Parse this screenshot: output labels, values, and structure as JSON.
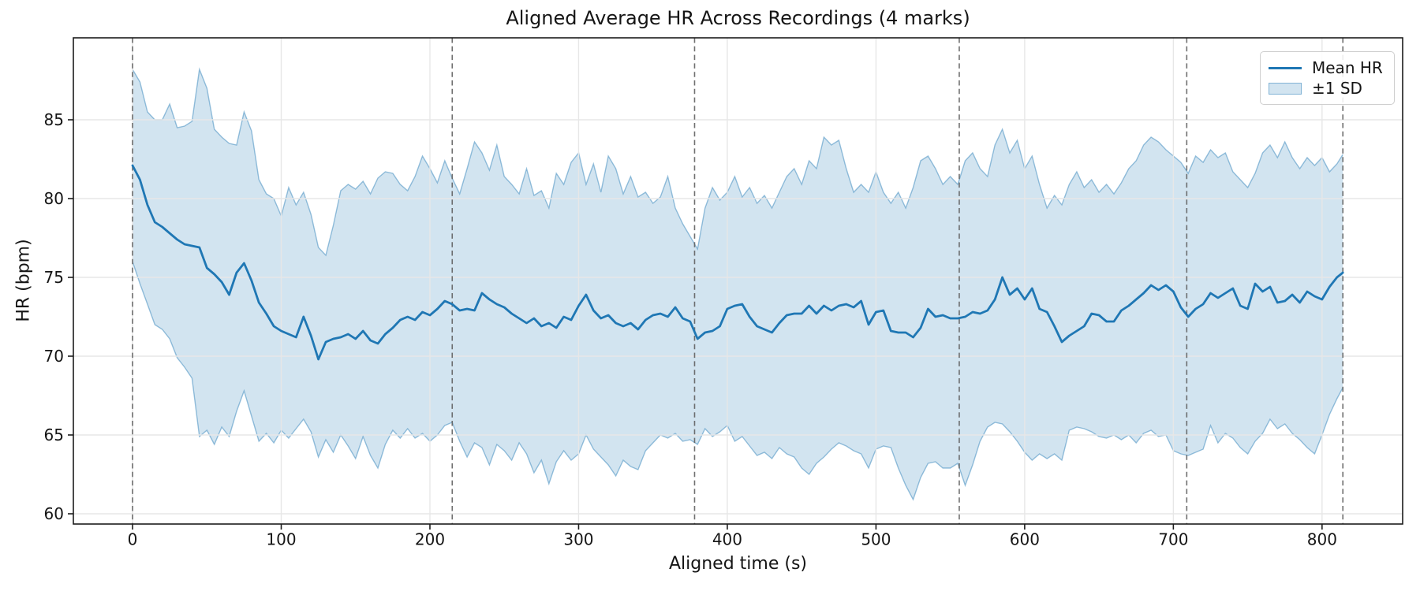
{
  "chart_data": {
    "type": "line",
    "title": "Aligned Average HR Across Recordings (4 marks)",
    "xlabel": "Aligned time (s)",
    "ylabel": "HR (bpm)",
    "xlim": [
      -39.8,
      854.2
    ],
    "ylim": [
      59.35,
      90.2
    ],
    "x_ticks": [
      0,
      100,
      200,
      300,
      400,
      500,
      600,
      700,
      800
    ],
    "y_ticks": [
      60,
      65,
      70,
      75,
      80,
      85
    ],
    "grid": true,
    "legend_position": "upper-right",
    "legend_entries": [
      {
        "label": "Mean HR",
        "swatch": "line",
        "color": "#1f77b4"
      },
      {
        "label": "±1 SD",
        "swatch": "patch",
        "color": "rgba(31,119,180,0.2)"
      }
    ],
    "mark_times_s": [
      0,
      215,
      378,
      556,
      709,
      814
    ],
    "series_x": [
      0,
      5,
      10,
      15,
      20,
      25,
      30,
      35,
      40,
      45,
      50,
      55,
      60,
      65,
      70,
      75,
      80,
      85,
      90,
      95,
      100,
      105,
      110,
      115,
      120,
      125,
      130,
      135,
      140,
      145,
      150,
      155,
      160,
      165,
      170,
      175,
      180,
      185,
      190,
      195,
      200,
      205,
      210,
      215,
      220,
      225,
      230,
      235,
      240,
      245,
      250,
      255,
      260,
      265,
      270,
      275,
      280,
      285,
      290,
      295,
      300,
      305,
      310,
      315,
      320,
      325,
      330,
      335,
      340,
      345,
      350,
      355,
      360,
      365,
      370,
      375,
      380,
      385,
      390,
      395,
      400,
      405,
      410,
      415,
      420,
      425,
      430,
      435,
      440,
      445,
      450,
      455,
      460,
      465,
      470,
      475,
      480,
      485,
      490,
      495,
      500,
      505,
      510,
      515,
      520,
      525,
      530,
      535,
      540,
      545,
      550,
      555,
      560,
      565,
      570,
      575,
      580,
      585,
      590,
      595,
      600,
      605,
      610,
      615,
      620,
      625,
      630,
      635,
      640,
      645,
      650,
      655,
      660,
      665,
      670,
      675,
      680,
      685,
      690,
      695,
      700,
      705,
      710,
      715,
      720,
      725,
      730,
      735,
      740,
      745,
      750,
      755,
      760,
      765,
      770,
      775,
      780,
      785,
      790,
      795,
      800,
      805,
      810,
      814
    ],
    "series": [
      {
        "name": "Mean HR",
        "type": "line",
        "color": "#1f77b4",
        "values": [
          82.1,
          81.2,
          79.6,
          78.5,
          78.2,
          77.8,
          77.4,
          77.1,
          77.0,
          76.9,
          75.6,
          75.2,
          74.7,
          73.9,
          75.3,
          75.9,
          74.8,
          73.4,
          72.7,
          71.9,
          71.6,
          71.4,
          71.2,
          72.5,
          71.3,
          69.8,
          70.9,
          71.1,
          71.2,
          71.4,
          71.1,
          71.6,
          71.0,
          70.8,
          71.4,
          71.8,
          72.3,
          72.5,
          72.3,
          72.8,
          72.6,
          73.0,
          73.5,
          73.3,
          72.9,
          73.0,
          72.9,
          74.0,
          73.6,
          73.3,
          73.1,
          72.7,
          72.4,
          72.1,
          72.4,
          71.9,
          72.1,
          71.8,
          72.5,
          72.3,
          73.2,
          73.9,
          72.9,
          72.4,
          72.6,
          72.1,
          71.9,
          72.1,
          71.7,
          72.3,
          72.6,
          72.7,
          72.5,
          73.1,
          72.4,
          72.2,
          71.1,
          71.5,
          71.6,
          71.9,
          73.0,
          73.2,
          73.3,
          72.5,
          71.9,
          71.7,
          71.5,
          72.1,
          72.6,
          72.7,
          72.7,
          73.2,
          72.7,
          73.2,
          72.9,
          73.2,
          73.3,
          73.1,
          73.5,
          72.0,
          72.8,
          72.9,
          71.6,
          71.5,
          71.5,
          71.2,
          71.8,
          73.0,
          72.5,
          72.6,
          72.4,
          72.4,
          72.5,
          72.8,
          72.7,
          72.9,
          73.6,
          75.0,
          73.9,
          74.3,
          73.6,
          74.3,
          73.0,
          72.8,
          71.9,
          70.9,
          71.3,
          71.6,
          71.9,
          72.7,
          72.6,
          72.2,
          72.2,
          72.9,
          73.2,
          73.6,
          74.0,
          74.5,
          74.2,
          74.5,
          74.1,
          73.1,
          72.5,
          73.0,
          73.3,
          74.0,
          73.7,
          74.0,
          74.3,
          73.2,
          73.0,
          74.6,
          74.1,
          74.4,
          73.4,
          73.5,
          73.9,
          73.4,
          74.1,
          73.8,
          73.6,
          74.4,
          75.0,
          75.3
        ]
      },
      {
        "name": "+1 SD",
        "type": "band_upper",
        "color": "rgba(31,119,180,0.2)",
        "values": [
          88.2,
          87.4,
          85.5,
          85.0,
          85.0,
          86.0,
          84.5,
          84.6,
          84.9,
          88.2,
          87.0,
          84.4,
          83.9,
          83.5,
          83.4,
          85.5,
          84.3,
          81.2,
          80.3,
          80.0,
          78.9,
          80.7,
          79.6,
          80.4,
          79.0,
          76.9,
          76.4,
          78.3,
          80.5,
          80.9,
          80.6,
          81.1,
          80.3,
          81.3,
          81.7,
          81.6,
          80.9,
          80.5,
          81.4,
          82.7,
          81.9,
          81.0,
          82.4,
          81.3,
          80.3,
          81.9,
          83.6,
          82.9,
          81.8,
          83.4,
          81.4,
          80.9,
          80.3,
          81.9,
          80.2,
          80.5,
          79.4,
          81.6,
          80.9,
          82.3,
          82.9,
          80.9,
          82.2,
          80.4,
          82.7,
          81.9,
          80.3,
          81.4,
          80.1,
          80.4,
          79.7,
          80.1,
          81.4,
          79.4,
          78.4,
          77.6,
          76.8,
          79.4,
          80.7,
          79.9,
          80.4,
          81.4,
          80.1,
          80.7,
          79.7,
          80.2,
          79.4,
          80.4,
          81.4,
          81.9,
          80.9,
          82.4,
          81.9,
          83.9,
          83.4,
          83.7,
          81.9,
          80.4,
          80.9,
          80.4,
          81.7,
          80.4,
          79.7,
          80.4,
          79.4,
          80.7,
          82.4,
          82.7,
          81.9,
          80.9,
          81.4,
          80.9,
          82.4,
          82.9,
          81.9,
          81.4,
          83.4,
          84.4,
          82.9,
          83.7,
          81.9,
          82.7,
          80.9,
          79.4,
          80.2,
          79.6,
          80.9,
          81.7,
          80.7,
          81.2,
          80.4,
          80.9,
          80.3,
          81.0,
          81.9,
          82.4,
          83.4,
          83.9,
          83.6,
          83.1,
          82.7,
          82.3,
          81.6,
          82.7,
          82.3,
          83.1,
          82.6,
          82.9,
          81.7,
          81.2,
          80.7,
          81.6,
          82.9,
          83.4,
          82.6,
          83.6,
          82.6,
          81.9,
          82.6,
          82.1,
          82.6,
          81.7,
          82.2,
          82.8
        ]
      },
      {
        "name": "-1 SD",
        "type": "band_lower",
        "color": "rgba(31,119,180,0.2)",
        "values": [
          76.0,
          74.6,
          73.3,
          72.0,
          71.7,
          71.1,
          69.9,
          69.3,
          68.6,
          64.9,
          65.3,
          64.4,
          65.5,
          64.9,
          66.5,
          67.8,
          66.2,
          64.6,
          65.1,
          64.5,
          65.3,
          64.8,
          65.4,
          66.0,
          65.2,
          63.6,
          64.7,
          63.9,
          65.0,
          64.3,
          63.5,
          64.9,
          63.7,
          62.9,
          64.4,
          65.3,
          64.8,
          65.4,
          64.8,
          65.1,
          64.6,
          65.0,
          65.6,
          65.8,
          64.6,
          63.6,
          64.5,
          64.2,
          63.1,
          64.4,
          64.0,
          63.4,
          64.5,
          63.8,
          62.6,
          63.4,
          61.9,
          63.3,
          64.0,
          63.4,
          63.8,
          65.0,
          64.1,
          63.6,
          63.1,
          62.4,
          63.4,
          63.0,
          62.8,
          64.0,
          64.5,
          65.0,
          64.8,
          65.1,
          64.6,
          64.7,
          64.4,
          65.4,
          64.9,
          65.2,
          65.6,
          64.6,
          64.9,
          64.3,
          63.7,
          63.9,
          63.5,
          64.2,
          63.8,
          63.6,
          62.9,
          62.5,
          63.2,
          63.6,
          64.1,
          64.5,
          64.3,
          64.0,
          63.8,
          62.9,
          64.1,
          64.3,
          64.2,
          62.9,
          61.8,
          60.9,
          62.3,
          63.2,
          63.3,
          62.9,
          62.9,
          63.2,
          61.8,
          63.1,
          64.6,
          65.5,
          65.8,
          65.7,
          65.2,
          64.6,
          63.9,
          63.4,
          63.8,
          63.5,
          63.8,
          63.4,
          65.3,
          65.5,
          65.4,
          65.2,
          64.9,
          64.8,
          65.0,
          64.7,
          65.0,
          64.5,
          65.1,
          65.3,
          64.9,
          65.0,
          64.0,
          63.8,
          63.7,
          63.9,
          64.1,
          65.6,
          64.5,
          65.1,
          64.8,
          64.2,
          63.8,
          64.6,
          65.1,
          66.0,
          65.4,
          65.7,
          65.1,
          64.7,
          64.2,
          63.8,
          65.0,
          66.3,
          67.3,
          68.0
        ]
      }
    ]
  },
  "style": {
    "mean_line_color": "#1f77b4",
    "band_fill_color": "rgba(31,119,180,0.2)",
    "band_edge_color": "rgba(31,119,180,0.45)",
    "mark_line_color": "#606060",
    "grid_color": "#e7e7e7",
    "spine_color": "#1c1c1c",
    "text_color": "#151515"
  }
}
